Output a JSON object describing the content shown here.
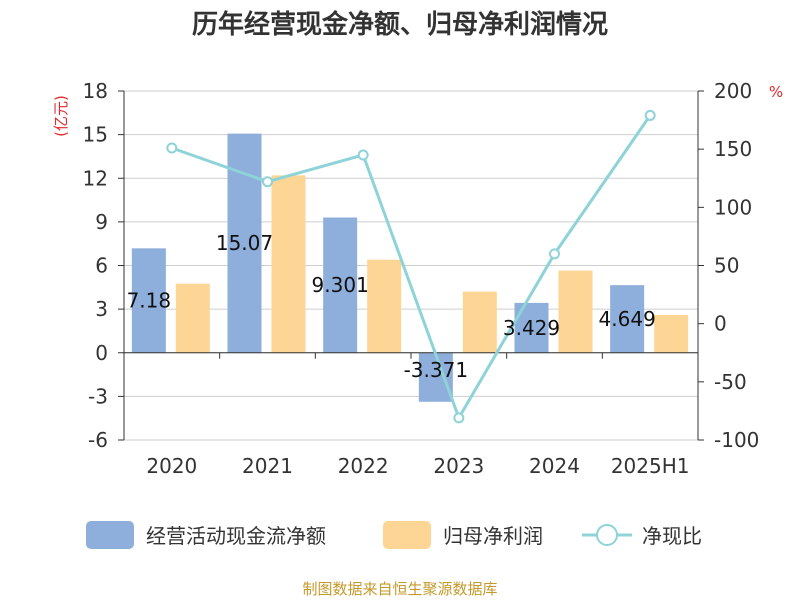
{
  "chart_data": {
    "type": "bar",
    "title": "历年经营现金净额、归母净利润情况",
    "categories": [
      "2020",
      "2021",
      "2022",
      "2023",
      "2024",
      "2025H1"
    ],
    "y_left": {
      "unit": "(亿元)",
      "min": -6,
      "max": 18,
      "ticks": [
        "18",
        "15",
        "12",
        "9",
        "6",
        "3",
        "0",
        "-3",
        "-6"
      ]
    },
    "y_right": {
      "unit": "%",
      "min": -100,
      "max": 200,
      "ticks": [
        "200",
        "150",
        "100",
        "50",
        "0",
        "-50",
        "-100"
      ]
    },
    "series": [
      {
        "name": "经营活动现金流净额",
        "type": "bar",
        "axis": "left",
        "color": "#8eaedb",
        "values": [
          7.18,
          15.07,
          9.301,
          -3.371,
          3.429,
          4.649
        ],
        "labels": [
          "7.18",
          "15.07",
          "9.301",
          "-3.371",
          "3.429",
          "4.649"
        ]
      },
      {
        "name": "归母净利润",
        "type": "bar",
        "axis": "left",
        "color": "#fdd595",
        "values": [
          4.75,
          12.2,
          6.4,
          4.2,
          5.65,
          2.6
        ]
      },
      {
        "name": "净现比",
        "type": "line",
        "axis": "right",
        "color": "#8dd3d8",
        "values": [
          151,
          122,
          145,
          -81,
          60,
          179
        ]
      }
    ],
    "grid": true,
    "legend": "bottom"
  },
  "colors": {
    "unit_color": "#e0292b",
    "source_color": "#c49a2c",
    "axis_color": "#333333",
    "grid_color": "#cfcfcf"
  },
  "source": "制图数据来自恒生聚源数据库"
}
